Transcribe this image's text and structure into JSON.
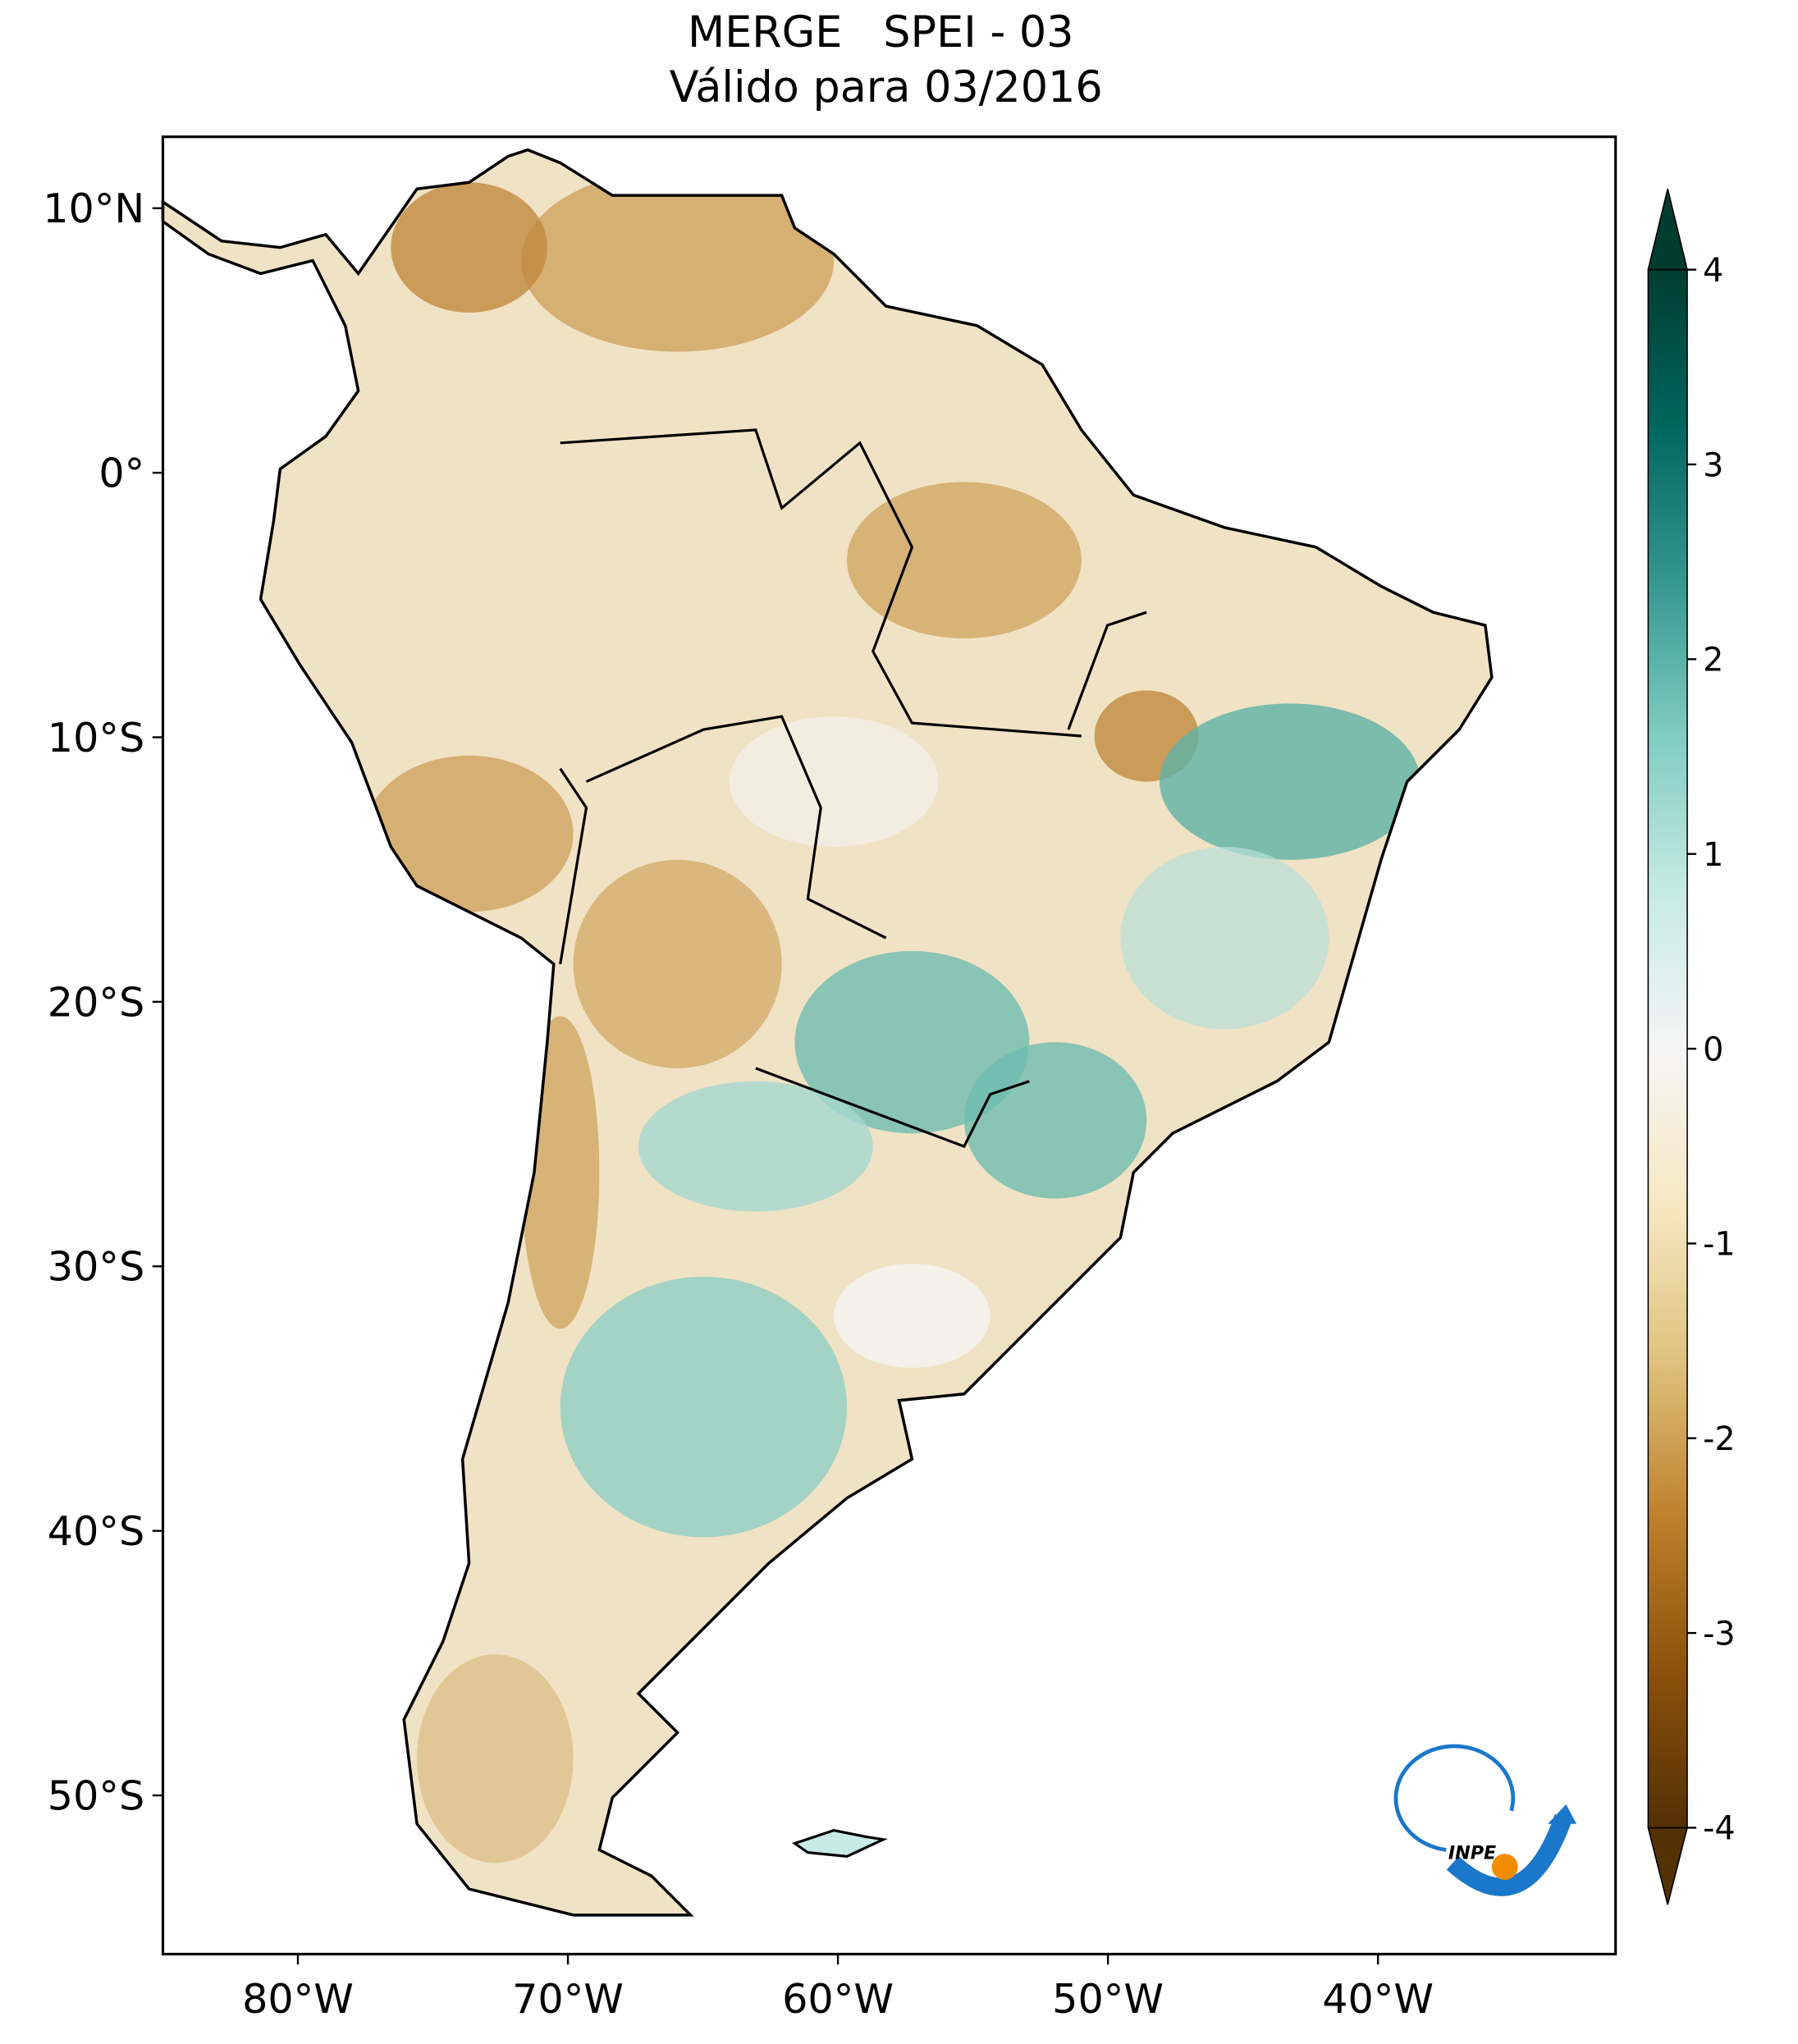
{
  "chart_data": {
    "type": "map",
    "title": "MERGE   SPEI - 03",
    "subtitle": "Válido para 03/2016",
    "xlim": [
      -85,
      -31.2
    ],
    "ylim": [
      -56,
      12.7
    ],
    "xticks": [
      {
        "value": -80,
        "label": "80°W"
      },
      {
        "value": -70,
        "label": "70°W"
      },
      {
        "value": -60,
        "label": "60°W"
      },
      {
        "value": -50,
        "label": "50°W"
      },
      {
        "value": -40,
        "label": "40°W"
      }
    ],
    "yticks": [
      {
        "value": 10,
        "label": "10°N"
      },
      {
        "value": 0,
        "label": "0°"
      },
      {
        "value": -10,
        "label": "10°S"
      },
      {
        "value": -20,
        "label": "20°S"
      },
      {
        "value": -30,
        "label": "30°S"
      },
      {
        "value": -40,
        "label": "40°S"
      },
      {
        "value": -50,
        "label": "50°S"
      }
    ],
    "colorbar": {
      "clim": [
        -4,
        4
      ],
      "ticks": [
        -4,
        -3,
        -2,
        -1,
        0,
        1,
        2,
        3,
        4
      ],
      "colors": [
        "#543005",
        "#8c510a",
        "#bf812d",
        "#dfc27d",
        "#f6e8c3",
        "#f5f5f5",
        "#c7eae5",
        "#80cdc1",
        "#35978f",
        "#01665e",
        "#003c30"
      ]
    },
    "logo": "INPE"
  }
}
